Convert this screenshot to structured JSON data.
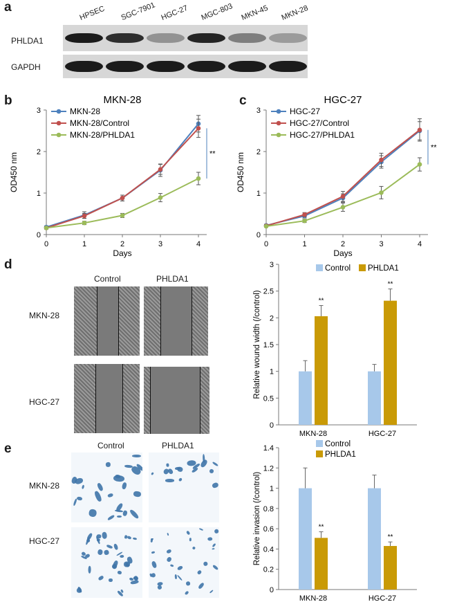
{
  "panel_letters": [
    "a",
    "b",
    "c",
    "d",
    "e"
  ],
  "western_blot": {
    "lanes": [
      "HPSEC",
      "SGC-7901",
      "HGC-27",
      "MGC-803",
      "MKN-45",
      "MKN-28"
    ],
    "rows": [
      {
        "label": "PHLDA1",
        "intensities": [
          0.95,
          0.85,
          0.35,
          0.9,
          0.45,
          0.3
        ]
      },
      {
        "label": "GAPDH",
        "intensities": [
          0.95,
          0.95,
          0.95,
          0.95,
          0.95,
          0.95
        ]
      }
    ]
  },
  "wound_images": {
    "col_labels": [
      "Control",
      "PHLDA1"
    ],
    "row_labels": [
      "MKN-28",
      "HGC-27"
    ]
  },
  "invasion_images": {
    "col_labels": [
      "Control",
      "PHLDA1"
    ],
    "row_labels": [
      "MKN-28",
      "HGC-27"
    ]
  },
  "chart_data": [
    {
      "id": "b",
      "type": "line",
      "title": "MKN-28",
      "xlabel": "Days",
      "ylabel": "OD450 nm",
      "x": [
        0,
        1,
        2,
        3,
        4
      ],
      "xlim": [
        0,
        4
      ],
      "ylim": [
        0,
        3
      ],
      "yticks": [
        0,
        1,
        2,
        3
      ],
      "legend_position": "top-left",
      "series": [
        {
          "name": "MKN-28",
          "color": "#4e81bd",
          "values": [
            0.18,
            0.47,
            0.88,
            1.55,
            2.67
          ],
          "errors": [
            0.03,
            0.08,
            0.07,
            0.15,
            0.2
          ]
        },
        {
          "name": "MKN-28/Control",
          "color": "#c0504d",
          "values": [
            0.16,
            0.45,
            0.88,
            1.57,
            2.56
          ],
          "errors": [
            0.03,
            0.06,
            0.07,
            0.12,
            0.22
          ]
        },
        {
          "name": "MKN-28/PHLDA1",
          "color": "#9bbb59",
          "values": [
            0.16,
            0.28,
            0.46,
            0.89,
            1.35
          ],
          "errors": [
            0.02,
            0.04,
            0.05,
            0.1,
            0.15
          ]
        }
      ],
      "annotation": "**"
    },
    {
      "id": "c",
      "type": "line",
      "title": "HGC-27",
      "xlabel": "Days",
      "ylabel": "OD450 nm",
      "x": [
        0,
        1,
        2,
        3,
        4
      ],
      "xlim": [
        0,
        4
      ],
      "ylim": [
        0,
        3
      ],
      "yticks": [
        0,
        1,
        2,
        3
      ],
      "legend_position": "top-left",
      "series": [
        {
          "name": "HGC-27",
          "color": "#4e81bd",
          "values": [
            0.22,
            0.45,
            0.88,
            1.75,
            2.5
          ],
          "errors": [
            0.03,
            0.05,
            0.1,
            0.15,
            0.22
          ]
        },
        {
          "name": "HGC-27/Control",
          "color": "#c0504d",
          "values": [
            0.21,
            0.48,
            0.92,
            1.8,
            2.52
          ],
          "errors": [
            0.03,
            0.05,
            0.12,
            0.16,
            0.27
          ]
        },
        {
          "name": "HGC-27/PHLDA1",
          "color": "#9bbb59",
          "values": [
            0.2,
            0.33,
            0.66,
            1.01,
            1.69
          ],
          "errors": [
            0.02,
            0.04,
            0.1,
            0.15,
            0.16
          ]
        }
      ],
      "annotation": "**"
    },
    {
      "id": "d",
      "type": "bar",
      "categories": [
        "MKN-28",
        "HGC-27"
      ],
      "ylabel": "Relative wound width (/control)",
      "ylim": [
        0,
        3
      ],
      "yticks": [
        0,
        0.5,
        1,
        1.5,
        2,
        2.5,
        3
      ],
      "legend_position": "top",
      "series": [
        {
          "name": "Control",
          "color": "#a7c8ea",
          "values": [
            1.0,
            1.0
          ],
          "errors": [
            0.2,
            0.13
          ]
        },
        {
          "name": "PHLDA1",
          "color": "#c99a06",
          "values": [
            2.03,
            2.32
          ],
          "errors": [
            0.2,
            0.22
          ]
        }
      ],
      "annotation": "**"
    },
    {
      "id": "e",
      "type": "bar",
      "categories": [
        "MKN-28",
        "HGC-27"
      ],
      "ylabel": "Relative invasion (/control)",
      "ylim": [
        0,
        1.4
      ],
      "yticks": [
        0,
        0.2,
        0.4,
        0.6,
        0.8,
        1,
        1.2,
        1.4
      ],
      "legend_position": "top-left",
      "series": [
        {
          "name": "Control",
          "color": "#a7c8ea",
          "values": [
            1.0,
            1.0
          ],
          "errors": [
            0.2,
            0.13
          ]
        },
        {
          "name": "PHLDA1",
          "color": "#c99a06",
          "values": [
            0.51,
            0.43
          ],
          "errors": [
            0.06,
            0.04
          ]
        }
      ],
      "annotation": "**"
    }
  ]
}
